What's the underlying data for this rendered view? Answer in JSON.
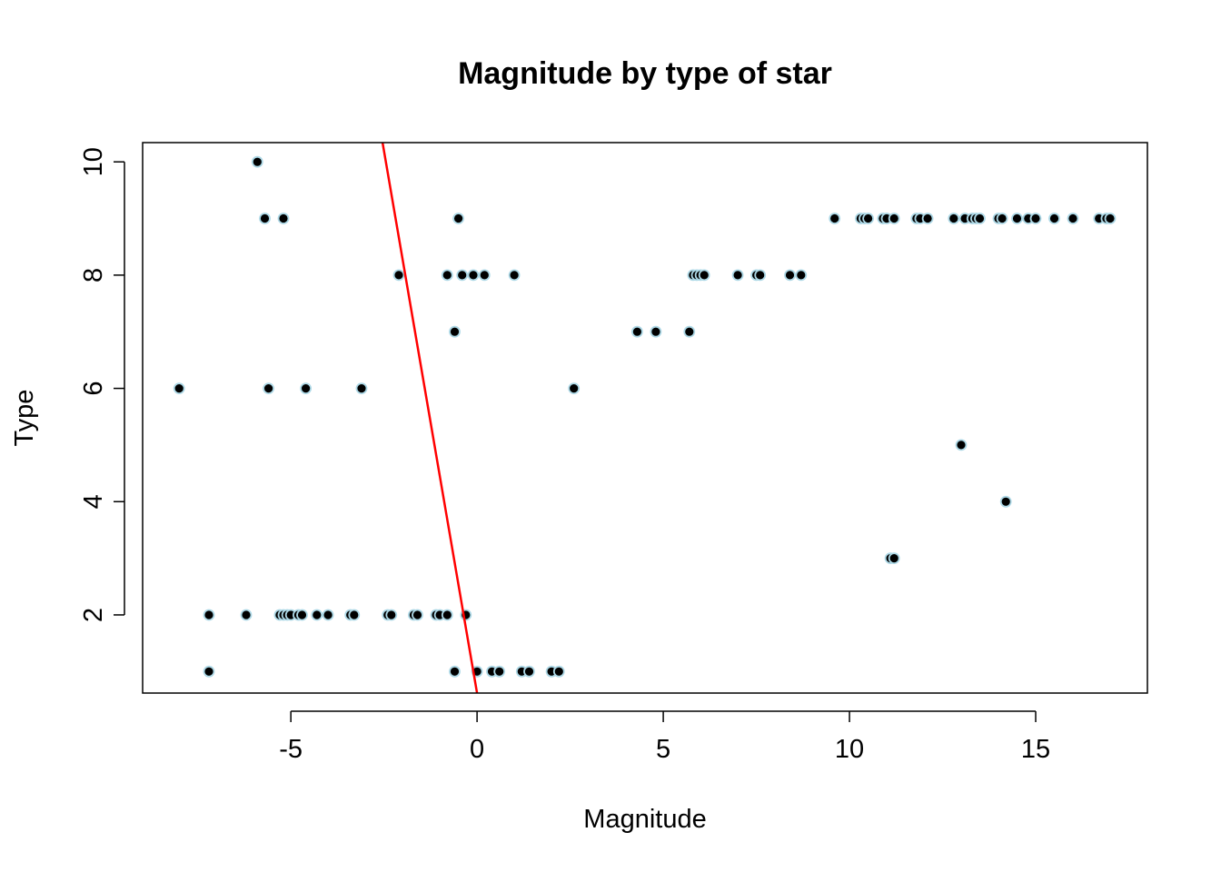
{
  "chart_data": {
    "type": "scatter",
    "title": "Magnitude by type of star",
    "xlabel": "Magnitude",
    "ylabel": "Type",
    "xlim": [
      -8.98,
      18.0
    ],
    "ylim": [
      0.62,
      10.34
    ],
    "x_ticks": [
      -5,
      0,
      5,
      10,
      15
    ],
    "x_tick_labels": [
      "-5",
      "0",
      "5",
      "10",
      "15"
    ],
    "y_ticks": [
      2,
      4,
      6,
      8,
      10
    ],
    "y_tick_labels": [
      "2",
      "4",
      "6",
      "8",
      "10"
    ],
    "grid": false,
    "legend": "none",
    "colors": {
      "point_fill": "#000000",
      "point_outline": "#add8e6",
      "regression_line": "#ff0000",
      "axis": "#000000"
    },
    "points": [
      {
        "x": -5.9,
        "y": 10
      },
      {
        "x": -5.7,
        "y": 9
      },
      {
        "x": -5.2,
        "y": 9
      },
      {
        "x": -0.5,
        "y": 9
      },
      {
        "x": -2.1,
        "y": 8
      },
      {
        "x": -0.8,
        "y": 8
      },
      {
        "x": -0.4,
        "y": 8
      },
      {
        "x": -0.1,
        "y": 8
      },
      {
        "x": 0.2,
        "y": 8
      },
      {
        "x": 1.0,
        "y": 8
      },
      {
        "x": -0.6,
        "y": 7
      },
      {
        "x": -8.0,
        "y": 6
      },
      {
        "x": -5.6,
        "y": 6
      },
      {
        "x": -4.6,
        "y": 6
      },
      {
        "x": -3.1,
        "y": 6
      },
      {
        "x": -7.2,
        "y": 2
      },
      {
        "x": -6.2,
        "y": 2
      },
      {
        "x": -5.3,
        "y": 2
      },
      {
        "x": -5.2,
        "y": 2
      },
      {
        "x": -5.1,
        "y": 2
      },
      {
        "x": -5.0,
        "y": 2
      },
      {
        "x": -4.8,
        "y": 2
      },
      {
        "x": -4.7,
        "y": 2
      },
      {
        "x": -4.3,
        "y": 2
      },
      {
        "x": -4.0,
        "y": 2
      },
      {
        "x": -3.4,
        "y": 2
      },
      {
        "x": -3.3,
        "y": 2
      },
      {
        "x": -2.4,
        "y": 2
      },
      {
        "x": -2.3,
        "y": 2
      },
      {
        "x": -1.7,
        "y": 2
      },
      {
        "x": -1.6,
        "y": 2
      },
      {
        "x": -1.1,
        "y": 2
      },
      {
        "x": -1.0,
        "y": 2
      },
      {
        "x": -0.8,
        "y": 2
      },
      {
        "x": -0.3,
        "y": 2
      },
      {
        "x": -7.2,
        "y": 1
      },
      {
        "x": -0.6,
        "y": 1
      },
      {
        "x": 0.0,
        "y": 1
      },
      {
        "x": 0.4,
        "y": 1
      },
      {
        "x": 0.6,
        "y": 1
      },
      {
        "x": 1.2,
        "y": 1
      },
      {
        "x": 1.4,
        "y": 1
      },
      {
        "x": 2.0,
        "y": 1
      },
      {
        "x": 2.2,
        "y": 1
      },
      {
        "x": 2.6,
        "y": 6
      },
      {
        "x": 4.3,
        "y": 7
      },
      {
        "x": 4.8,
        "y": 7
      },
      {
        "x": 5.7,
        "y": 7
      },
      {
        "x": 5.8,
        "y": 8
      },
      {
        "x": 5.9,
        "y": 8
      },
      {
        "x": 6.0,
        "y": 8
      },
      {
        "x": 6.1,
        "y": 8
      },
      {
        "x": 7.0,
        "y": 8
      },
      {
        "x": 7.5,
        "y": 8
      },
      {
        "x": 7.6,
        "y": 8
      },
      {
        "x": 8.4,
        "y": 8
      },
      {
        "x": 8.7,
        "y": 8
      },
      {
        "x": 9.6,
        "y": 9
      },
      {
        "x": 10.3,
        "y": 9
      },
      {
        "x": 10.4,
        "y": 9
      },
      {
        "x": 10.5,
        "y": 9
      },
      {
        "x": 10.9,
        "y": 9
      },
      {
        "x": 11.0,
        "y": 9
      },
      {
        "x": 11.2,
        "y": 9
      },
      {
        "x": 11.8,
        "y": 9
      },
      {
        "x": 11.9,
        "y": 9
      },
      {
        "x": 12.1,
        "y": 9
      },
      {
        "x": 12.8,
        "y": 9
      },
      {
        "x": 13.1,
        "y": 9
      },
      {
        "x": 13.3,
        "y": 9
      },
      {
        "x": 13.4,
        "y": 9
      },
      {
        "x": 13.5,
        "y": 9
      },
      {
        "x": 14.0,
        "y": 9
      },
      {
        "x": 14.1,
        "y": 9
      },
      {
        "x": 14.5,
        "y": 9
      },
      {
        "x": 14.8,
        "y": 9
      },
      {
        "x": 15.0,
        "y": 9
      },
      {
        "x": 15.5,
        "y": 9
      },
      {
        "x": 16.0,
        "y": 9
      },
      {
        "x": 16.7,
        "y": 9
      },
      {
        "x": 16.9,
        "y": 9
      },
      {
        "x": 17.0,
        "y": 9
      },
      {
        "x": 13.0,
        "y": 5
      },
      {
        "x": 14.2,
        "y": 4
      },
      {
        "x": 11.1,
        "y": 3
      },
      {
        "x": 11.2,
        "y": 3
      }
    ],
    "regression_line": {
      "intercept": 0.62,
      "slope": -3.83
    }
  }
}
